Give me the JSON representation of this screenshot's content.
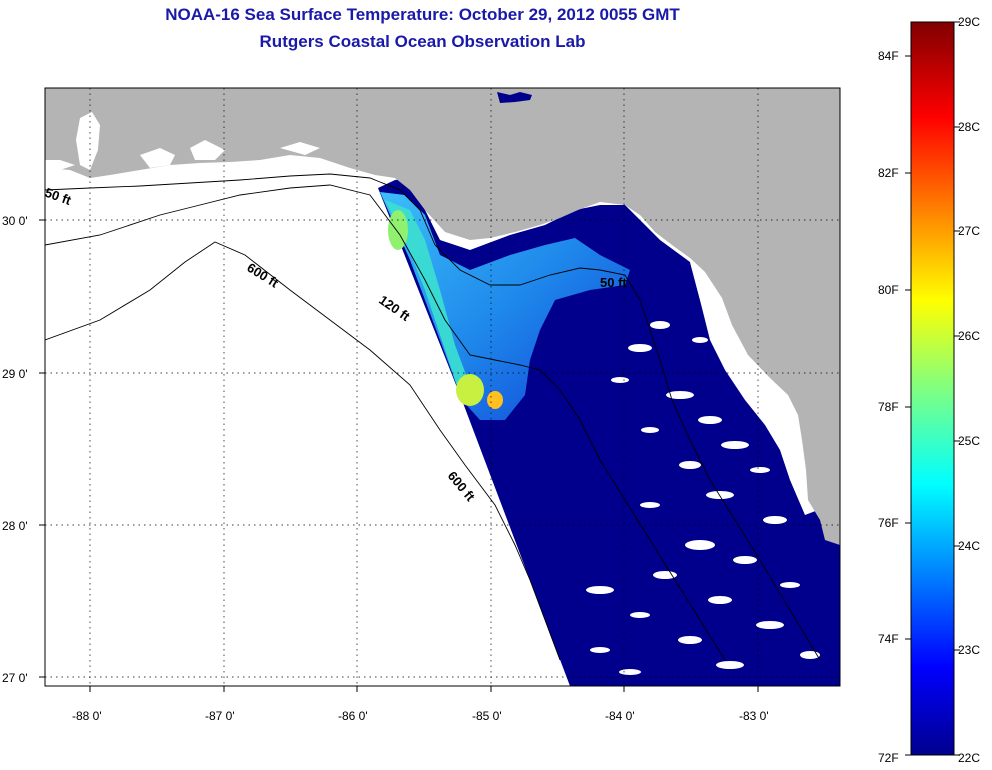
{
  "title": "NOAA-16 Sea Surface Temperature:  October 29, 2012 0055 GMT",
  "subtitle": "Rutgers Coastal Ocean Observation Lab",
  "map": {
    "lon_ticks": [
      "-88 0'",
      "-87 0'",
      "-86 0'",
      "-85 0'",
      "-84 0'",
      "-83 0'"
    ],
    "lat_ticks": [
      "30 0'",
      "29 0'",
      "28 0'",
      "27 0'"
    ],
    "contour_labels": [
      "50 ft",
      "600 ft",
      "120 ft",
      "600 ft",
      "50 ft"
    ],
    "colors": {
      "land": "#b4b4b4",
      "no_data": "#ffffff",
      "cold_water": "#00008c"
    }
  },
  "colorbar": {
    "fahrenheit": [
      "84F",
      "82F",
      "80F",
      "78F",
      "76F",
      "74F",
      "72F"
    ],
    "celsius": [
      "29C",
      "28C",
      "27C",
      "26C",
      "25C",
      "24C",
      "23C",
      "22C"
    ],
    "palette": "jet"
  }
}
